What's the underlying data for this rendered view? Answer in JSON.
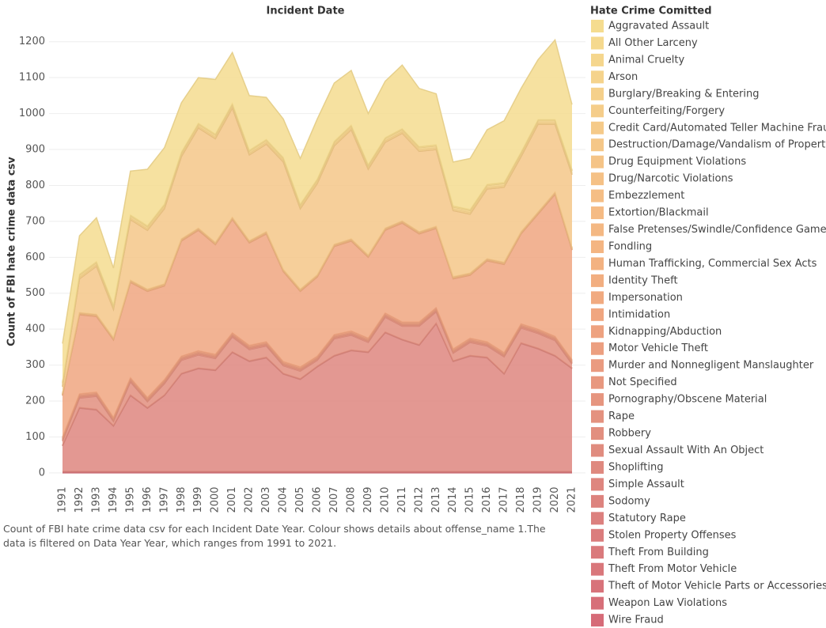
{
  "chart_data": {
    "type": "stacked_area",
    "title": "Incident Date",
    "ylabel": "Count of FBI hate crime data csv",
    "legend_title": "Hate Crime Comitted",
    "caption": "Count of FBI hate crime data csv for each Incident Date Year. Colour shows details about offense_name 1.The data is filtered on Data Year Year, which ranges from 1991 to 2021.",
    "x": [
      1991,
      1992,
      1993,
      1994,
      1995,
      1996,
      1997,
      1998,
      1999,
      2000,
      2001,
      2002,
      2003,
      2004,
      2005,
      2006,
      2007,
      2008,
      2009,
      2010,
      2011,
      2012,
      2013,
      2014,
      2015,
      2016,
      2017,
      2018,
      2019,
      2020,
      2021
    ],
    "xlim": [
      1991,
      2021
    ],
    "ylim": [
      -20,
      1250
    ],
    "yticks": [
      0,
      100,
      200,
      300,
      400,
      500,
      600,
      700,
      800,
      900,
      1000,
      1100,
      1200
    ],
    "grid": true,
    "series": [
      {
        "name": "Aggravated Assault",
        "color": "#f5dc8f",
        "values": [
          107,
          107,
          122,
          102,
          122,
          157,
          157,
          137,
          127,
          152,
          142,
          152,
          117,
          107,
          127,
          167,
          162,
          152,
          142,
          157,
          177,
          162,
          142,
          122,
          142,
          152,
          172,
          177,
          167,
          222,
          182
        ]
      },
      {
        "name": "All Other Larceny",
        "color": "#f5d98e",
        "values": [
          3,
          3,
          3,
          3,
          3,
          3,
          3,
          3,
          3,
          3,
          3,
          3,
          3,
          3,
          3,
          3,
          3,
          3,
          3,
          3,
          3,
          3,
          3,
          3,
          3,
          3,
          3,
          3,
          3,
          3,
          3
        ]
      },
      {
        "name": "Animal Cruelty",
        "color": "#f5d68d",
        "values": [
          0,
          0,
          0,
          0,
          0,
          0,
          0,
          0,
          0,
          0,
          0,
          0,
          0,
          0,
          0,
          0,
          0,
          0,
          0,
          0,
          0,
          0,
          0,
          0,
          0,
          0,
          0,
          0,
          0,
          0,
          0
        ]
      },
      {
        "name": "Arson",
        "color": "#f5d38c",
        "values": [
          5,
          5,
          5,
          5,
          5,
          5,
          5,
          5,
          5,
          5,
          5,
          5,
          5,
          5,
          5,
          5,
          5,
          5,
          5,
          5,
          5,
          5,
          5,
          5,
          5,
          5,
          5,
          5,
          5,
          5,
          5
        ]
      },
      {
        "name": "Burglary/Breaking & Entering",
        "color": "#f5d08b",
        "values": [
          4,
          4,
          4,
          4,
          4,
          4,
          4,
          4,
          4,
          4,
          4,
          4,
          4,
          4,
          4,
          4,
          4,
          4,
          4,
          4,
          4,
          4,
          4,
          4,
          4,
          4,
          4,
          4,
          4,
          4,
          4
        ]
      },
      {
        "name": "Counterfeiting/Forgery",
        "color": "#f5cd8a",
        "values": [
          1,
          1,
          1,
          1,
          1,
          1,
          1,
          1,
          1,
          1,
          1,
          1,
          1,
          1,
          1,
          1,
          1,
          1,
          1,
          1,
          1,
          1,
          1,
          1,
          1,
          1,
          1,
          1,
          1,
          1,
          1
        ]
      },
      {
        "name": "Credit Card/Automated Teller Machine Fraud",
        "color": "#f5ca89",
        "values": [
          0,
          0,
          0,
          0,
          0,
          0,
          0,
          0,
          0,
          0,
          0,
          0,
          0,
          0,
          0,
          0,
          0,
          0,
          0,
          0,
          0,
          0,
          0,
          0,
          0,
          0,
          0,
          0,
          0,
          0,
          0
        ]
      },
      {
        "name": "Destruction/Damage/Vandalism of Property",
        "color": "#f5c788",
        "values": [
          19,
          94,
          134,
          79,
          169,
          164,
          209,
          229,
          279,
          289,
          304,
          239,
          244,
          299,
          224,
          254,
          274,
          304,
          239,
          239,
          244,
          224,
          214,
          184,
          164,
          194,
          209,
          209,
          244,
          189,
          204
        ]
      },
      {
        "name": "Drug Equipment Violations",
        "color": "#f5c487",
        "values": [
          0,
          0,
          0,
          0,
          0,
          0,
          0,
          0,
          0,
          0,
          0,
          0,
          0,
          0,
          0,
          0,
          0,
          0,
          0,
          0,
          0,
          0,
          0,
          0,
          0,
          0,
          0,
          0,
          0,
          0,
          0
        ]
      },
      {
        "name": "Drug/Narcotic Violations",
        "color": "#f5c186",
        "values": [
          2,
          2,
          2,
          2,
          2,
          2,
          2,
          2,
          2,
          2,
          2,
          2,
          2,
          2,
          2,
          2,
          2,
          2,
          2,
          2,
          2,
          2,
          2,
          2,
          2,
          2,
          2,
          2,
          2,
          2,
          2
        ]
      },
      {
        "name": "Embezzlement",
        "color": "#f5be85",
        "values": [
          0,
          0,
          0,
          0,
          0,
          0,
          0,
          0,
          0,
          0,
          0,
          0,
          0,
          0,
          0,
          0,
          0,
          0,
          0,
          0,
          0,
          0,
          0,
          0,
          0,
          0,
          0,
          0,
          0,
          0,
          0
        ]
      },
      {
        "name": "Extortion/Blackmail",
        "color": "#f5bb84",
        "values": [
          0,
          0,
          0,
          0,
          0,
          0,
          0,
          0,
          0,
          0,
          0,
          0,
          0,
          0,
          0,
          0,
          0,
          0,
          0,
          0,
          0,
          0,
          0,
          0,
          0,
          0,
          0,
          0,
          0,
          0,
          0
        ]
      },
      {
        "name": "False Pretenses/Swindle/Confidence Game",
        "color": "#f4b883",
        "values": [
          1,
          1,
          1,
          1,
          1,
          1,
          1,
          1,
          1,
          1,
          1,
          1,
          1,
          1,
          1,
          1,
          1,
          1,
          1,
          1,
          1,
          1,
          1,
          1,
          1,
          1,
          1,
          1,
          1,
          1,
          1
        ]
      },
      {
        "name": "Fondling",
        "color": "#f4b582",
        "values": [
          2,
          2,
          2,
          2,
          2,
          2,
          2,
          2,
          2,
          2,
          2,
          2,
          2,
          2,
          2,
          2,
          2,
          2,
          2,
          2,
          2,
          2,
          2,
          2,
          2,
          2,
          2,
          2,
          2,
          2,
          2
        ]
      },
      {
        "name": "Human Trafficking, Commercial Sex Acts",
        "color": "#f3b281",
        "values": [
          0,
          0,
          0,
          0,
          0,
          0,
          0,
          0,
          0,
          0,
          0,
          0,
          0,
          0,
          0,
          0,
          0,
          0,
          0,
          0,
          0,
          0,
          0,
          0,
          0,
          0,
          0,
          0,
          0,
          0,
          0
        ]
      },
      {
        "name": "Identity Theft",
        "color": "#f2ae80",
        "values": [
          0,
          0,
          0,
          0,
          0,
          0,
          0,
          0,
          0,
          0,
          0,
          0,
          0,
          0,
          0,
          0,
          0,
          0,
          0,
          0,
          0,
          0,
          0,
          0,
          0,
          0,
          0,
          0,
          0,
          0,
          0
        ]
      },
      {
        "name": "Impersonation",
        "color": "#f1aa80",
        "values": [
          1,
          1,
          1,
          1,
          1,
          1,
          1,
          1,
          1,
          1,
          1,
          1,
          1,
          1,
          1,
          1,
          1,
          1,
          1,
          1,
          1,
          1,
          1,
          1,
          1,
          1,
          1,
          1,
          1,
          1,
          1
        ]
      },
      {
        "name": "Intimidation",
        "color": "#f0a680",
        "values": [
          115,
          220,
          210,
          215,
          265,
          295,
          260,
          320,
          335,
          305,
          315,
          285,
          300,
          250,
          210,
          220,
          245,
          250,
          225,
          230,
          275,
          245,
          220,
          195,
          175,
          225,
          245,
          250,
          320,
          395,
          305
        ]
      },
      {
        "name": "Kidnapping/Abduction",
        "color": "#eea280",
        "values": [
          3,
          3,
          3,
          3,
          3,
          3,
          3,
          3,
          3,
          3,
          3,
          3,
          3,
          3,
          3,
          3,
          3,
          3,
          3,
          3,
          3,
          3,
          3,
          3,
          3,
          3,
          3,
          3,
          3,
          3,
          3
        ]
      },
      {
        "name": "Motor Vehicle Theft",
        "color": "#ec9f80",
        "values": [
          2,
          2,
          2,
          2,
          2,
          2,
          2,
          2,
          2,
          2,
          2,
          2,
          2,
          2,
          2,
          2,
          2,
          2,
          2,
          2,
          2,
          2,
          2,
          2,
          2,
          2,
          2,
          2,
          2,
          2,
          2
        ]
      },
      {
        "name": "Murder and Nonnegligent Manslaughter",
        "color": "#ea9b80",
        "values": [
          2,
          2,
          2,
          2,
          2,
          2,
          2,
          2,
          2,
          2,
          2,
          2,
          2,
          2,
          2,
          2,
          2,
          2,
          2,
          2,
          2,
          2,
          2,
          2,
          2,
          2,
          2,
          2,
          2,
          2,
          2
        ]
      },
      {
        "name": "Not Specified",
        "color": "#e8987f",
        "values": [
          2,
          2,
          2,
          2,
          2,
          2,
          2,
          2,
          2,
          2,
          2,
          2,
          2,
          2,
          2,
          2,
          2,
          2,
          2,
          2,
          2,
          2,
          2,
          2,
          2,
          2,
          2,
          2,
          2,
          2,
          2
        ]
      },
      {
        "name": "Pornography/Obscene Material",
        "color": "#e6957f",
        "values": [
          0,
          0,
          0,
          0,
          0,
          0,
          0,
          0,
          0,
          0,
          0,
          0,
          0,
          0,
          0,
          0,
          0,
          0,
          0,
          0,
          0,
          0,
          0,
          0,
          0,
          0,
          0,
          0,
          0,
          0,
          0
        ]
      },
      {
        "name": "Rape",
        "color": "#e4927f",
        "values": [
          3,
          3,
          3,
          3,
          3,
          3,
          3,
          3,
          3,
          3,
          3,
          3,
          3,
          3,
          3,
          3,
          3,
          3,
          3,
          3,
          3,
          3,
          3,
          3,
          3,
          3,
          3,
          3,
          3,
          3,
          3
        ]
      },
      {
        "name": "Robbery",
        "color": "#e28f7f",
        "values": [
          11,
          26,
          36,
          11,
          36,
          16,
          31,
          36,
          36,
          31,
          41,
          31,
          31,
          21,
          21,
          16,
          46,
          41,
          26,
          41,
          36,
          51,
          31,
          21,
          36,
          31,
          46,
          41,
          41,
          41,
          11
        ]
      },
      {
        "name": "Sexual Assault With An Object",
        "color": "#e08c7f",
        "values": [
          1,
          1,
          1,
          1,
          1,
          1,
          1,
          1,
          1,
          1,
          1,
          1,
          1,
          1,
          1,
          1,
          1,
          1,
          1,
          1,
          1,
          1,
          1,
          1,
          1,
          1,
          1,
          1,
          1,
          1,
          1
        ]
      },
      {
        "name": "Shoplifting",
        "color": "#df897f",
        "values": [
          1,
          1,
          1,
          1,
          1,
          1,
          1,
          1,
          1,
          1,
          1,
          1,
          1,
          1,
          1,
          1,
          1,
          1,
          1,
          1,
          1,
          1,
          1,
          1,
          1,
          1,
          1,
          1,
          1,
          1,
          1
        ]
      },
      {
        "name": "Simple Assault",
        "color": "#de867f",
        "values": [
          71,
          176,
          171,
          126,
          211,
          176,
          211,
          271,
          286,
          281,
          331,
          306,
          316,
          271,
          256,
          291,
          321,
          336,
          331,
          386,
          366,
          351,
          411,
          306,
          321,
          316,
          271,
          356,
          341,
          321,
          286
        ]
      },
      {
        "name": "Sodomy",
        "color": "#dd837e",
        "values": [
          1,
          1,
          1,
          1,
          1,
          1,
          1,
          1,
          1,
          1,
          1,
          1,
          1,
          1,
          1,
          1,
          1,
          1,
          1,
          1,
          1,
          1,
          1,
          1,
          1,
          1,
          1,
          1,
          1,
          1,
          1
        ]
      },
      {
        "name": "Statutory Rape",
        "color": "#dc807e",
        "values": [
          0,
          0,
          0,
          0,
          0,
          0,
          0,
          0,
          0,
          0,
          0,
          0,
          0,
          0,
          0,
          0,
          0,
          0,
          0,
          0,
          0,
          0,
          0,
          0,
          0,
          0,
          0,
          0,
          0,
          0,
          0
        ]
      },
      {
        "name": "Stolen Property Offenses",
        "color": "#db7d7d",
        "values": [
          0,
          0,
          0,
          0,
          0,
          0,
          0,
          0,
          0,
          0,
          0,
          0,
          0,
          0,
          0,
          0,
          0,
          0,
          0,
          0,
          0,
          0,
          0,
          0,
          0,
          0,
          0,
          0,
          0,
          0,
          0
        ]
      },
      {
        "name": "Theft From Building",
        "color": "#da7a7c",
        "values": [
          0,
          0,
          0,
          0,
          0,
          0,
          0,
          0,
          0,
          0,
          0,
          0,
          0,
          0,
          0,
          0,
          0,
          0,
          0,
          0,
          0,
          0,
          0,
          0,
          0,
          0,
          0,
          0,
          0,
          0,
          0
        ]
      },
      {
        "name": "Theft From Motor Vehicle",
        "color": "#d9777b",
        "values": [
          1,
          1,
          1,
          1,
          1,
          1,
          1,
          1,
          1,
          1,
          1,
          1,
          1,
          1,
          1,
          1,
          1,
          1,
          1,
          1,
          1,
          1,
          1,
          1,
          1,
          1,
          1,
          1,
          1,
          1,
          1
        ]
      },
      {
        "name": "Theft of Motor Vehicle Parts or Accessories",
        "color": "#d8737a",
        "values": [
          0,
          0,
          0,
          0,
          0,
          0,
          0,
          0,
          0,
          0,
          0,
          0,
          0,
          0,
          0,
          0,
          0,
          0,
          0,
          0,
          0,
          0,
          0,
          0,
          0,
          0,
          0,
          0,
          0,
          0,
          0
        ]
      },
      {
        "name": "Weapon Law Violations",
        "color": "#d76f79",
        "values": [
          2,
          2,
          2,
          2,
          2,
          2,
          2,
          2,
          2,
          2,
          2,
          2,
          2,
          2,
          2,
          2,
          2,
          2,
          2,
          2,
          2,
          2,
          2,
          2,
          2,
          2,
          2,
          2,
          2,
          2,
          2
        ]
      },
      {
        "name": "Wire Fraud",
        "color": "#d66b78",
        "values": [
          0,
          0,
          0,
          0,
          0,
          0,
          0,
          0,
          0,
          0,
          0,
          0,
          0,
          0,
          0,
          0,
          0,
          0,
          0,
          0,
          0,
          0,
          0,
          0,
          0,
          0,
          0,
          0,
          0,
          0,
          0
        ]
      }
    ]
  }
}
